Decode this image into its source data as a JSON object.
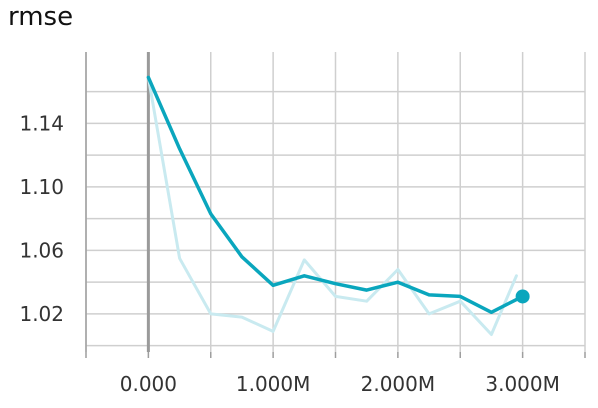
{
  "chart_data": {
    "type": "line",
    "title": "rmse",
    "xlabel": "",
    "ylabel": "",
    "xlim": [
      -0.5,
      3.5
    ],
    "ylim": [
      0.996,
      1.185
    ],
    "x_ticks": [
      {
        "value": 0,
        "label": "0.000"
      },
      {
        "value": 1,
        "label": "1.000M"
      },
      {
        "value": 2,
        "label": "2.000M"
      },
      {
        "value": 3,
        "label": "3.000M"
      }
    ],
    "x_minor_ticks": [
      -0.5,
      0.5,
      1.5,
      2.5,
      3.5
    ],
    "y_ticks": [
      {
        "value": 1.02,
        "label": "1.02"
      },
      {
        "value": 1.06,
        "label": "1.06"
      },
      {
        "value": 1.1,
        "label": "1.10"
      },
      {
        "value": 1.14,
        "label": "1.14"
      }
    ],
    "y_minor_ticks": [
      1.0,
      1.04,
      1.08,
      1.12,
      1.16
    ],
    "grid": true,
    "series": [
      {
        "role": "raw",
        "color": "#c9eaf0",
        "x": [
          0,
          0.25,
          0.5,
          0.75,
          1.0,
          1.25,
          1.5,
          1.75,
          2.0,
          2.25,
          2.5,
          2.75,
          2.95
        ],
        "y": [
          1.169,
          1.055,
          1.02,
          1.018,
          1.009,
          1.054,
          1.031,
          1.028,
          1.048,
          1.02,
          1.028,
          1.007,
          1.044
        ]
      },
      {
        "role": "smoothed",
        "color": "#0aa6bd",
        "x": [
          0,
          0.25,
          0.5,
          0.75,
          1.0,
          1.25,
          1.5,
          1.75,
          2.0,
          2.25,
          2.5,
          2.75,
          3.0
        ],
        "y": [
          1.169,
          1.124,
          1.083,
          1.056,
          1.038,
          1.044,
          1.039,
          1.035,
          1.04,
          1.032,
          1.031,
          1.021,
          1.031
        ]
      }
    ],
    "highlight_point": {
      "x": 3.0,
      "y": 1.031,
      "color": "#0aa6bd"
    }
  }
}
